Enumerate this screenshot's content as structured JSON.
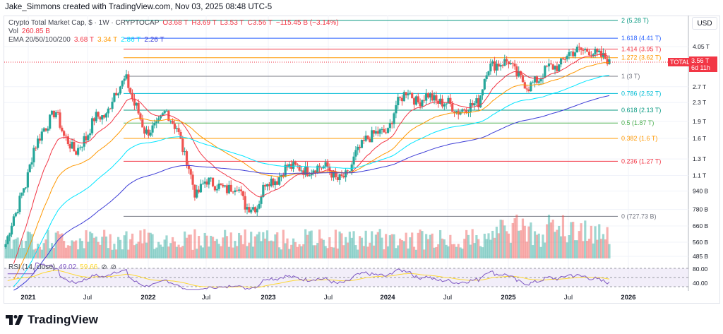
{
  "credit": "Jake_Simmons created with TradingView.com, Nov 03, 2025 08:48 UTC-5",
  "legend": {
    "symbol": "Crypto Total Market Cap, $ · 1W · CRYPTOCAP",
    "o": "O3.68 T",
    "h": "H3.69 T",
    "l": "L3.53 T",
    "c": "C3.56 T",
    "chg": "−115.45 B (−3.14%)",
    "vol_label": "Vol",
    "vol": "260.85 B",
    "ema_label": "EMA 20/50/100/200",
    "ema20": "3.68 T",
    "ema50": "3.34 T",
    "ema100": "2.86 T",
    "ema200": "2.26 T",
    "rsi_label": "RSI (14, close)",
    "rsi": "49.02",
    "rsi_ma": "59.66"
  },
  "currency": "USD",
  "price_tag": {
    "label": "TOTAL",
    "price": "3.56 T",
    "countdown": "6d 11h"
  },
  "colors": {
    "up": "#26a69a",
    "down": "#ef5350",
    "ema20": "#f23645",
    "ema50": "#ff9800",
    "ema100": "#00e5ff",
    "ema200": "#3d3dd6",
    "rsi": "#7e57c2",
    "rsi_ma": "#fdd835"
  },
  "chart_data": {
    "type": "candlestick",
    "y_scale": "log",
    "y_ticks": [
      "4.05 T",
      "2.7 T",
      "2.3 T",
      "1.9 T",
      "1.6 T",
      "1.3 T",
      "1.1 T",
      "940 B",
      "780 B",
      "660 B",
      "560 B",
      "485 B"
    ],
    "y_tick_values": [
      4.05,
      2.7,
      2.3,
      1.9,
      1.6,
      1.3,
      1.1,
      0.94,
      0.78,
      0.66,
      0.56,
      0.485
    ],
    "x_ticks": [
      "2021",
      "Jul",
      "2022",
      "Jul",
      "2023",
      "Jul",
      "2024",
      "Jul",
      "2025",
      "Jul",
      "2026"
    ],
    "rsi_ticks": [
      "80.00",
      "40.00"
    ],
    "monthly_close_trillions": {
      "start": "2020-11",
      "values": [
        0.55,
        0.75,
        1.0,
        1.5,
        1.8,
        2.1,
        1.6,
        1.4,
        1.6,
        2.0,
        2.0,
        2.6,
        2.9,
        2.2,
        1.7,
        1.8,
        2.1,
        1.8,
        1.3,
        0.9,
        1.05,
        1.0,
        0.95,
        1.0,
        0.8,
        0.8,
        1.05,
        1.05,
        1.2,
        1.2,
        1.15,
        1.2,
        1.2,
        1.05,
        1.1,
        1.4,
        1.6,
        1.7,
        1.7,
        2.3,
        2.6,
        2.3,
        2.5,
        2.3,
        2.3,
        2.1,
        2.2,
        2.3,
        3.3,
        3.4,
        3.5,
        3.0,
        2.7,
        2.9,
        3.3,
        3.3,
        3.8,
        3.9,
        3.9,
        3.7,
        3.56
      ]
    },
    "fib_levels": [
      {
        "label": "2 (5.28 T)",
        "value": 5.28,
        "color": "#089981"
      },
      {
        "label": "1.618 (4.41 T)",
        "value": 4.41,
        "color": "#2962ff"
      },
      {
        "label": "1.414 (3.95 T)",
        "value": 3.95,
        "color": "#f23645"
      },
      {
        "label": "1.272 (3.62 T)",
        "value": 3.62,
        "color": "#ff9800"
      },
      {
        "label": "1 (3 T)",
        "value": 3.0,
        "color": "#787b86"
      },
      {
        "label": "0.786 (2.52 T)",
        "value": 2.52,
        "color": "#00bcd4"
      },
      {
        "label": "0.618 (2.13 T)",
        "value": 2.13,
        "color": "#089981"
      },
      {
        "label": "0.5 (1.87 T)",
        "value": 1.87,
        "color": "#4caf50"
      },
      {
        "label": "0.382 (1.6 T)",
        "value": 1.6,
        "color": "#ff9800"
      },
      {
        "label": "0.236 (1.27 T)",
        "value": 1.27,
        "color": "#f23645"
      },
      {
        "label": "0 (727.73 B)",
        "value": 0.72773,
        "color": "#787b86"
      }
    ]
  },
  "branding": "TradingView"
}
